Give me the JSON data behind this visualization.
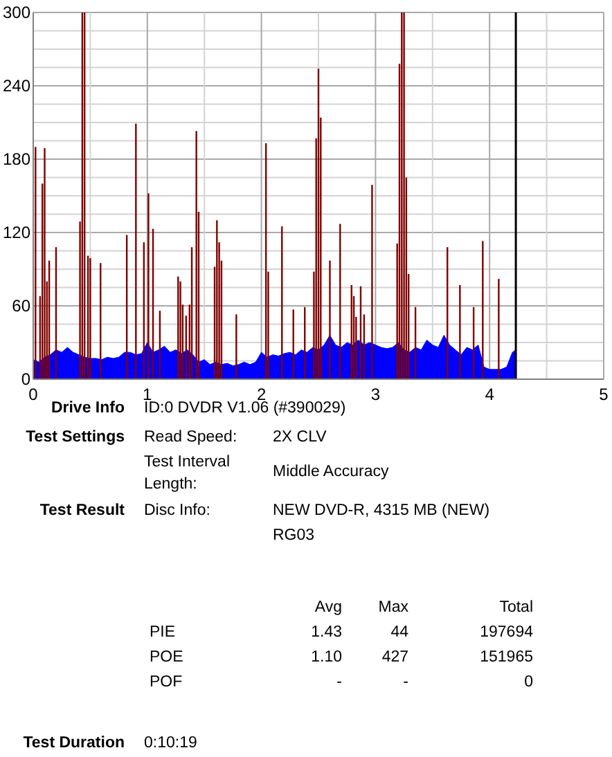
{
  "chart_data": [
    {
      "type": "area",
      "xlim": [
        0,
        5
      ],
      "ylim": [
        0,
        300
      ],
      "xticks": [
        0,
        {
          "value": 0.5,
          "label": null
        },
        1,
        {
          "value": 1.5,
          "label": null
        },
        2,
        {
          "value": 2.5,
          "label": null
        },
        3,
        {
          "value": 3.5,
          "label": null
        },
        4,
        {
          "value": 4.5,
          "label": null
        },
        5
      ],
      "yticks": [
        0,
        {
          "value": 15,
          "label": null
        },
        {
          "value": 30,
          "label": null
        },
        {
          "value": 45,
          "label": null
        },
        60,
        {
          "value": 75,
          "label": null
        },
        {
          "value": 90,
          "label": null
        },
        {
          "value": 105,
          "label": null
        },
        120,
        {
          "value": 135,
          "label": null
        },
        {
          "value": 150,
          "label": null
        },
        {
          "value": 165,
          "label": null
        },
        180,
        {
          "value": 195,
          "label": null
        },
        {
          "value": 210,
          "label": null
        },
        {
          "value": 225,
          "label": null
        },
        240,
        {
          "value": 255,
          "label": null
        },
        {
          "value": 270,
          "label": null
        },
        {
          "value": 285,
          "label": null
        },
        300
      ],
      "grid": true,
      "series": [
        {
          "type": "area",
          "color": "#0000ff",
          "x": [
            0,
            0.05,
            0.1,
            0.15,
            0.2,
            0.25,
            0.3,
            0.35,
            0.4,
            0.45,
            0.5,
            0.55,
            0.6,
            0.65,
            0.7,
            0.75,
            0.8,
            0.85,
            0.9,
            0.95,
            1.0,
            1.05,
            1.1,
            1.15,
            1.2,
            1.25,
            1.3,
            1.35,
            1.4,
            1.45,
            1.5,
            1.55,
            1.6,
            1.65,
            1.7,
            1.75,
            1.8,
            1.85,
            1.9,
            1.95,
            2.0,
            2.05,
            2.1,
            2.15,
            2.2,
            2.25,
            2.3,
            2.35,
            2.4,
            2.45,
            2.5,
            2.55,
            2.6,
            2.65,
            2.7,
            2.75,
            2.8,
            2.85,
            2.9,
            2.95,
            3.0,
            3.05,
            3.1,
            3.15,
            3.2,
            3.25,
            3.3,
            3.35,
            3.4,
            3.45,
            3.5,
            3.55,
            3.6,
            3.65,
            3.7,
            3.75,
            3.8,
            3.85,
            3.9,
            3.95,
            4.0,
            4.05,
            4.1,
            4.15,
            4.2,
            4.23
          ],
          "values": [
            16,
            14,
            18,
            20,
            24,
            22,
            26,
            22,
            20,
            18,
            17,
            17,
            16,
            18,
            17,
            18,
            22,
            22,
            20,
            21,
            30,
            22,
            24,
            27,
            22,
            24,
            21,
            24,
            20,
            14,
            16,
            12,
            14,
            12,
            13,
            11,
            12,
            14,
            12,
            14,
            22,
            18,
            20,
            19,
            21,
            22,
            20,
            24,
            22,
            26,
            24,
            28,
            36,
            28,
            26,
            30,
            28,
            32,
            28,
            30,
            28,
            26,
            25,
            26,
            30,
            24,
            22,
            26,
            24,
            32,
            28,
            26,
            36,
            28,
            24,
            20,
            26,
            24,
            28,
            10,
            8,
            8,
            8,
            10,
            22,
            24
          ]
        },
        {
          "type": "bar",
          "color": "#800000",
          "x": [
            0.02,
            0.06,
            0.08,
            0.1,
            0.12,
            0.14,
            0.2,
            0.41,
            0.43,
            0.45,
            0.48,
            0.5,
            0.59,
            0.82,
            0.9,
            0.97,
            1.01,
            1.05,
            1.11,
            1.27,
            1.29,
            1.31,
            1.34,
            1.37,
            1.39,
            1.43,
            1.45,
            1.59,
            1.61,
            1.63,
            1.65,
            1.78,
            2.04,
            2.06,
            2.18,
            2.28,
            2.38,
            2.46,
            2.48,
            2.5,
            2.52,
            2.6,
            2.69,
            2.79,
            2.81,
            2.83,
            2.87,
            2.9,
            2.97,
            3.19,
            3.21,
            3.23,
            3.25,
            3.27,
            3.29,
            3.35,
            3.63,
            3.74,
            3.86,
            3.94,
            4.08
          ],
          "values": [
            190,
            68,
            160,
            189,
            80,
            97,
            108,
            129,
            300,
            300,
            101,
            99,
            95,
            118,
            209,
            112,
            152,
            123,
            56,
            84,
            80,
            61,
            52,
            61,
            108,
            203,
            137,
            92,
            130,
            112,
            97,
            53,
            193,
            88,
            125,
            57,
            59,
            88,
            197,
            254,
            214,
            97,
            127,
            77,
            68,
            51,
            76,
            53,
            159,
            111,
            258,
            300,
            300,
            165,
            86,
            59,
            108,
            77,
            59,
            113,
            82
          ]
        }
      ],
      "ref_lines": [
        {
          "axis": "x",
          "value": 4.23,
          "color": "#000000"
        }
      ]
    },
    {
      "type": "other",
      "annotations": [
        "Drive Info",
        "ID:0 DVDR V1.06 (#390029)",
        "Test Settings",
        "Read Speed:",
        "2X CLV",
        "Test Interval Length:",
        "Middle Accuracy",
        "Test Result",
        "Disc Info:",
        "NEW DVD-R, 4315 MB (NEW)",
        "RG03",
        "Avg",
        "Max",
        "Total",
        "PIE",
        "1.43",
        "44",
        "197694",
        "POE",
        "1.10",
        "427",
        "151965",
        "POF",
        "-",
        "-",
        "0",
        "Test Duration",
        "0:10:19"
      ]
    }
  ]
}
